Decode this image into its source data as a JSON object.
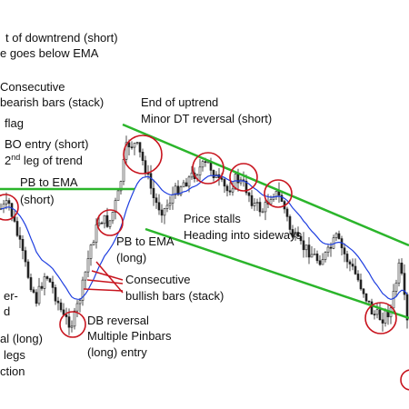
{
  "annotations": {
    "downtrend_start": [
      "t of downtrend (short)",
      "e goes below EMA"
    ],
    "bearish_stack": [
      "Consecutive",
      "bearish bars (stack)"
    ],
    "flag": "flag",
    "bo_entry": "BO entry (short)",
    "second_leg": {
      "number": "2",
      "suffix": "nd",
      "rest": " leg of trend"
    },
    "pb_short": [
      "PB to EMA",
      "(short)"
    ],
    "end_uptrend": [
      "End of uptrend",
      "Minor DT reversal (short)"
    ],
    "price_stalls": [
      "Price stalls",
      "Heading into sideways"
    ],
    "pb_long": [
      "PB to EMA",
      "(long)"
    ],
    "bullish_stack": [
      "Consecutive",
      "bullish bars (stack)"
    ],
    "db_reversal": [
      "DB reversal",
      "Multiple Pinbars",
      "(long) entry"
    ],
    "left_cut": [
      "er-",
      "d",
      "al (long)",
      "legs",
      "ction"
    ]
  }
}
